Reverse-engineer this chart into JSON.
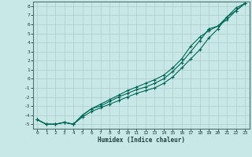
{
  "xlabel": "Humidex (Indice chaleur)",
  "bg_color": "#c8e8e8",
  "grid_color": "#b0cccc",
  "line_color": "#006655",
  "ylim": [
    -5.5,
    8.5
  ],
  "xlim": [
    -0.5,
    23.5
  ],
  "yticks": [
    -5,
    -4,
    -3,
    -2,
    -1,
    0,
    1,
    2,
    3,
    4,
    5,
    6,
    7,
    8
  ],
  "xticks": [
    0,
    1,
    2,
    3,
    4,
    5,
    6,
    7,
    8,
    9,
    10,
    11,
    12,
    13,
    14,
    15,
    16,
    17,
    18,
    19,
    20,
    21,
    22,
    23
  ],
  "line1_x": [
    0,
    1,
    2,
    3,
    4,
    5,
    6,
    7,
    8,
    9,
    10,
    11,
    12,
    13,
    14,
    15,
    16,
    17,
    18,
    19,
    20,
    21,
    22,
    23
  ],
  "line1_y": [
    -4.5,
    -5.0,
    -5.0,
    -4.8,
    -5.0,
    -4.2,
    -3.6,
    -3.2,
    -2.8,
    -2.4,
    -2.0,
    -1.6,
    -1.3,
    -1.0,
    -0.5,
    0.2,
    1.2,
    2.2,
    3.2,
    4.5,
    5.5,
    6.8,
    7.5,
    8.3
  ],
  "line2_x": [
    0,
    1,
    2,
    3,
    4,
    5,
    6,
    7,
    8,
    9,
    10,
    11,
    12,
    13,
    14,
    15,
    16,
    17,
    18,
    19,
    20,
    21,
    22,
    23
  ],
  "line2_y": [
    -4.5,
    -5.0,
    -5.0,
    -4.8,
    -5.0,
    -4.0,
    -3.3,
    -3.0,
    -2.5,
    -2.0,
    -1.6,
    -1.2,
    -0.9,
    -0.5,
    0.0,
    0.8,
    1.8,
    3.0,
    4.2,
    5.5,
    5.8,
    6.8,
    7.8,
    8.3
  ],
  "line3_x": [
    0,
    1,
    2,
    3,
    4,
    5,
    6,
    7,
    8,
    9,
    10,
    11,
    12,
    13,
    14,
    15,
    16,
    17,
    18,
    19,
    20,
    21,
    22,
    23
  ],
  "line3_y": [
    -4.5,
    -5.0,
    -5.0,
    -4.8,
    -5.0,
    -4.0,
    -3.3,
    -2.8,
    -2.3,
    -1.8,
    -1.3,
    -0.9,
    -0.5,
    -0.1,
    0.4,
    1.2,
    2.2,
    3.6,
    4.6,
    5.3,
    5.8,
    6.5,
    7.5,
    8.3
  ]
}
